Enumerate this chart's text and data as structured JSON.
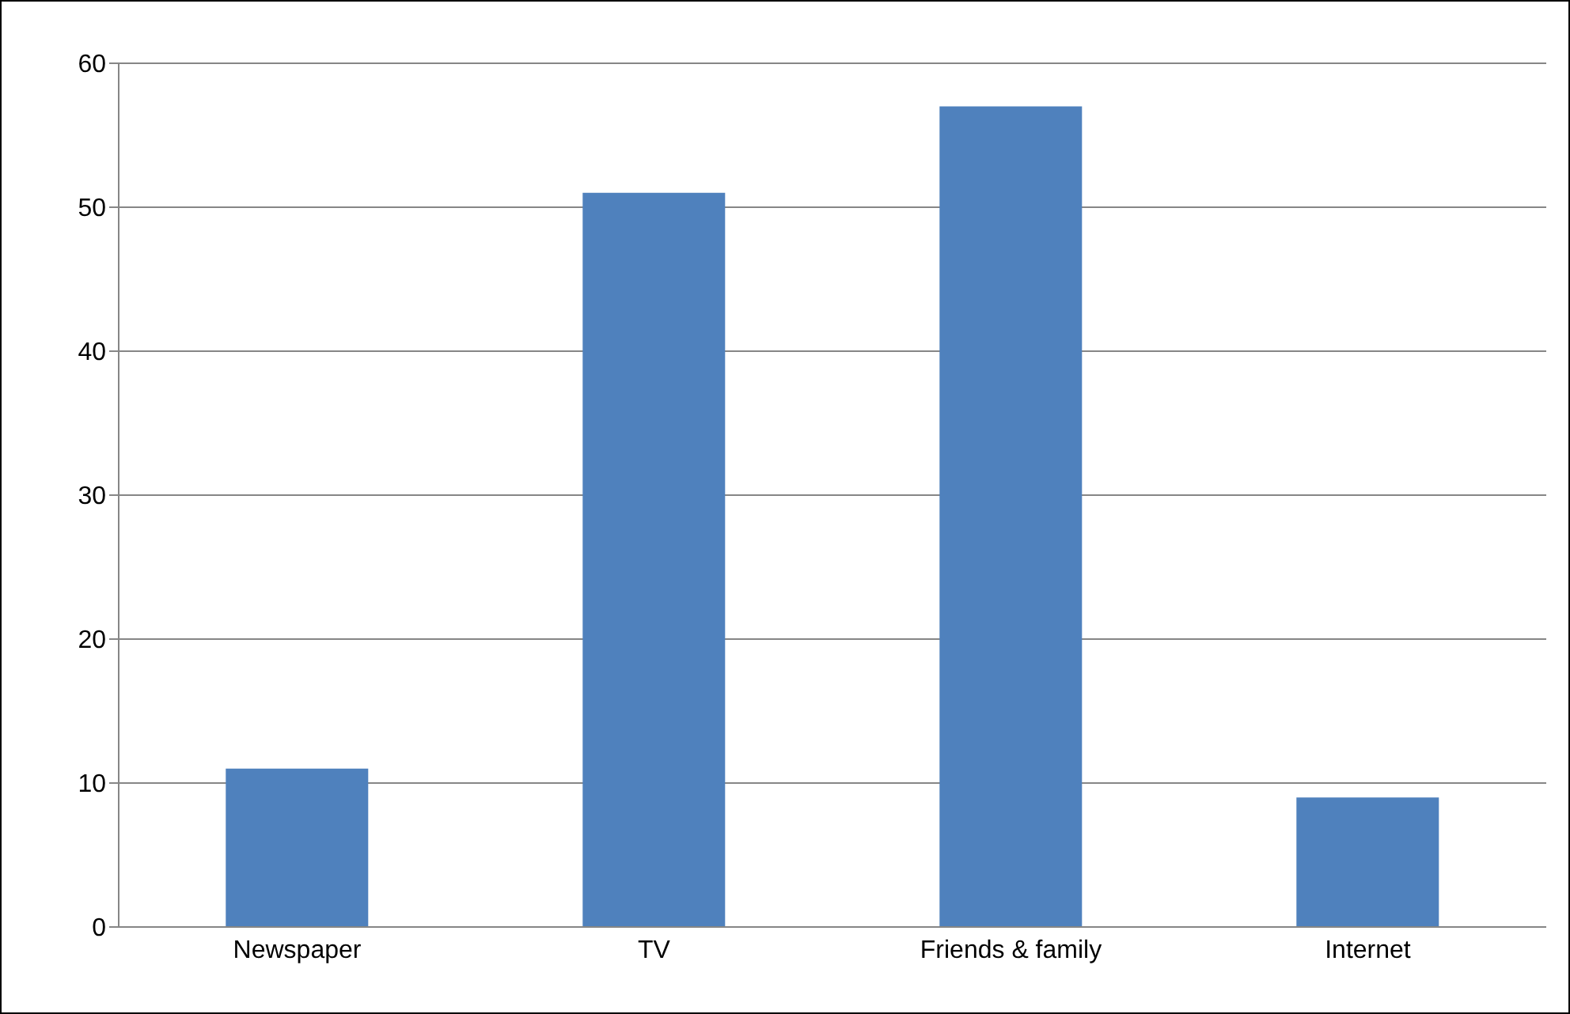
{
  "chart_data": {
    "type": "bar",
    "categories": [
      "Newspaper",
      "TV",
      "Friends & family",
      "Internet"
    ],
    "values": [
      11,
      51,
      57,
      9
    ],
    "color": "#4f81bd",
    "ylim": [
      0,
      60
    ],
    "yticks": [
      0,
      10,
      20,
      30,
      40,
      50,
      60
    ],
    "grid": "y",
    "legend": false
  }
}
